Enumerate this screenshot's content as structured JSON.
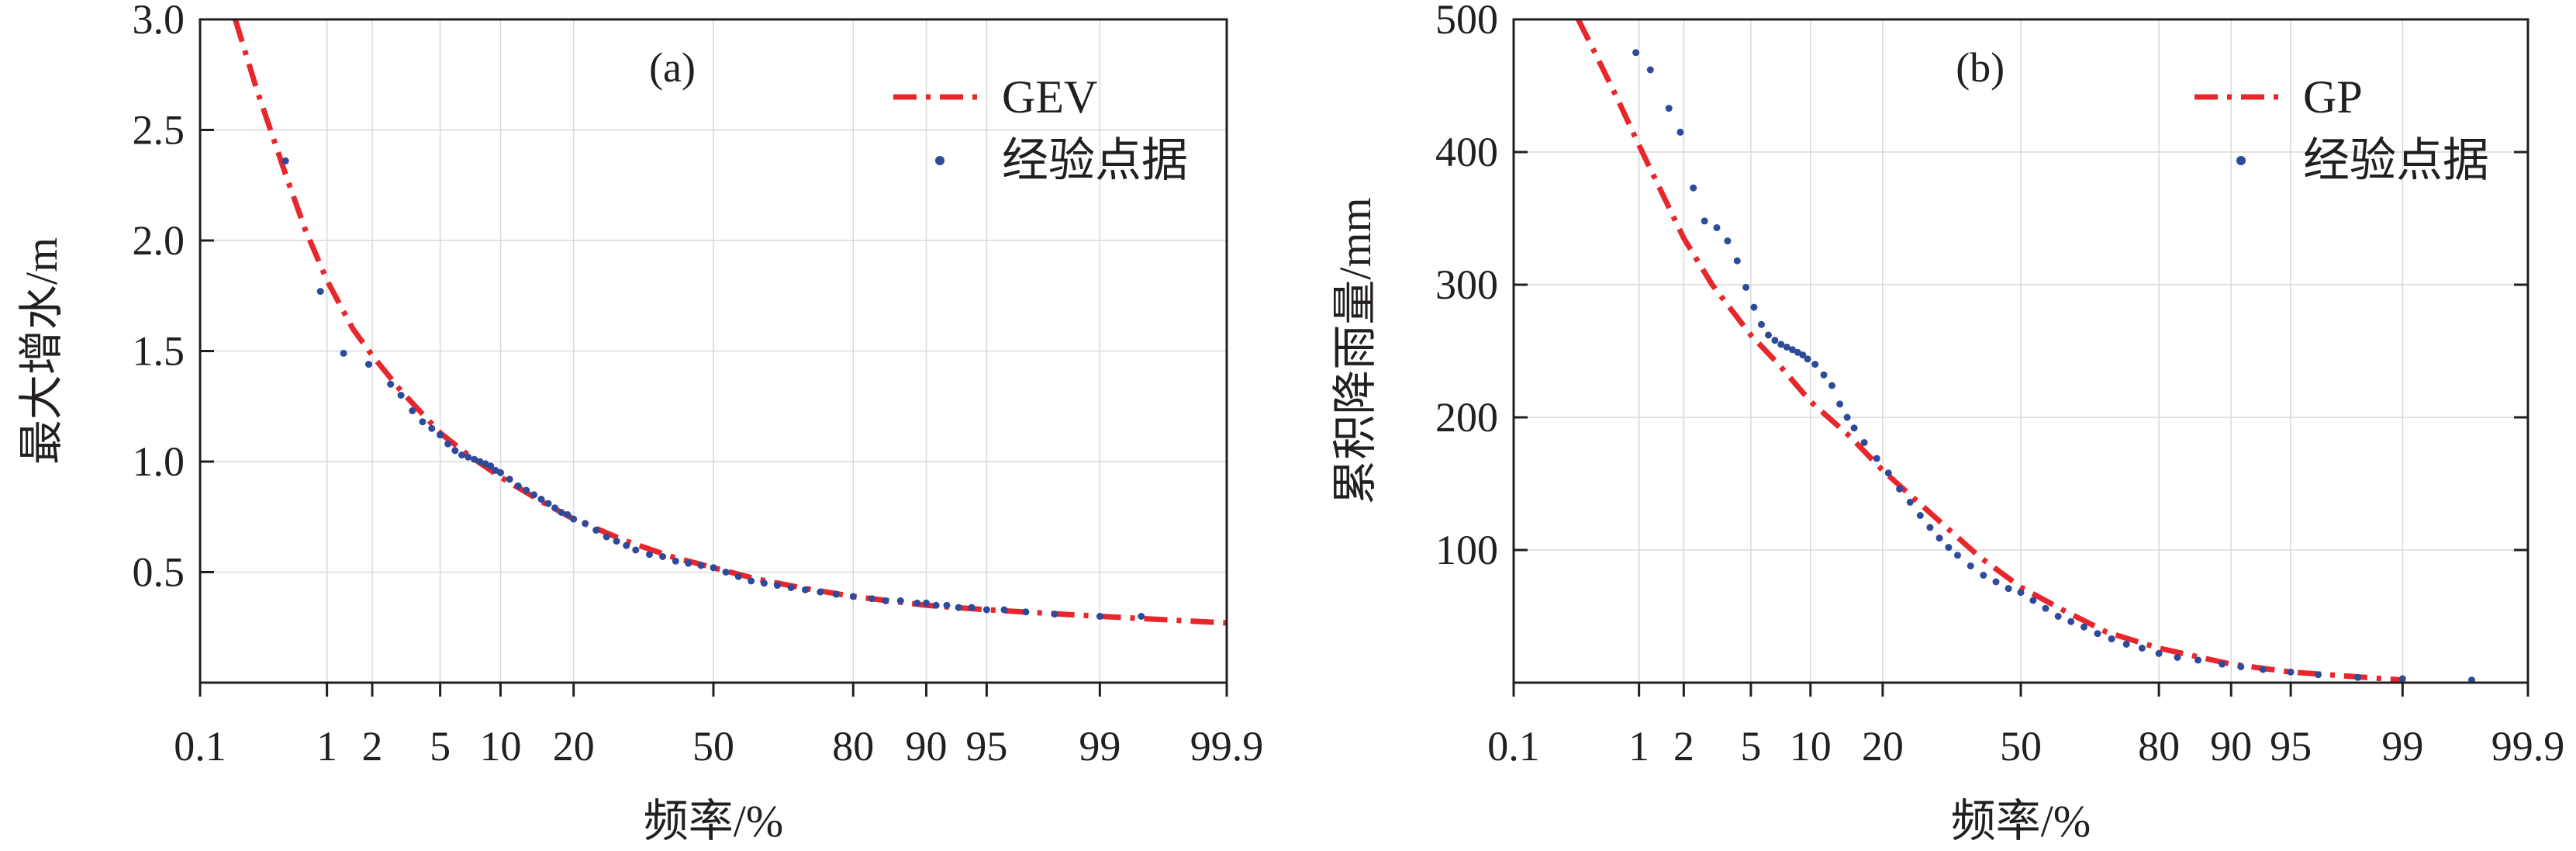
{
  "chart_data": [
    {
      "type": "scatter",
      "panel_label": "(a)",
      "xlabel": "频率/%",
      "ylabel": "最大增水/m",
      "x_scale": "normal-probability",
      "x_ticks": [
        0.1,
        1,
        2,
        5,
        10,
        20,
        50,
        80,
        90,
        95,
        99,
        99.9
      ],
      "x_tick_labels": [
        "0.1",
        "1",
        "2",
        "5",
        "10",
        "20",
        "50",
        "80",
        "90",
        "95",
        "99",
        "99.9"
      ],
      "y_ticks": [
        0.5,
        1.0,
        1.5,
        2.0,
        2.5,
        3.0
      ],
      "y_tick_labels": [
        "0.5",
        "1.0",
        "1.5",
        "2.0",
        "2.5",
        "3.0"
      ],
      "ylim": [
        0.0,
        3.0
      ],
      "grid": true,
      "legend_position": "top-right",
      "series": [
        {
          "name": "GEV",
          "kind": "fit-line",
          "color": "#e8262b",
          "x": [
            0.2,
            0.3,
            0.5,
            0.7,
            1,
            1.5,
            2,
            3,
            5,
            7,
            10,
            15,
            20,
            30,
            40,
            50,
            60,
            70,
            80,
            90,
            95,
            99,
            99.9
          ],
          "y": [
            3.0,
            2.68,
            2.3,
            2.05,
            1.82,
            1.6,
            1.48,
            1.32,
            1.13,
            1.03,
            0.93,
            0.82,
            0.74,
            0.64,
            0.57,
            0.52,
            0.47,
            0.43,
            0.39,
            0.35,
            0.33,
            0.3,
            0.27
          ]
        },
        {
          "name": "经验点据",
          "kind": "empirical",
          "color": "#2e4a9a",
          "x": [
            0.5,
            0.9,
            1.3,
            1.9,
            2.6,
            3,
            3.5,
            4,
            4.5,
            5,
            5.5,
            6,
            6.5,
            7,
            7.5,
            8,
            8.5,
            9,
            9.5,
            10,
            11,
            12,
            13,
            14,
            15,
            16,
            17,
            18,
            19,
            20,
            22,
            24,
            26,
            28,
            30,
            32,
            35,
            38,
            41,
            44,
            47,
            50,
            53,
            56,
            59,
            62,
            65,
            68,
            71,
            74,
            77,
            80,
            83,
            85,
            87,
            89,
            90,
            91,
            92,
            93,
            94,
            95,
            96,
            97,
            98,
            99,
            99.5
          ],
          "y": [
            2.36,
            1.77,
            1.49,
            1.44,
            1.35,
            1.3,
            1.23,
            1.18,
            1.15,
            1.12,
            1.08,
            1.05,
            1.03,
            1.02,
            1.01,
            1.0,
            0.99,
            0.98,
            0.96,
            0.95,
            0.92,
            0.89,
            0.87,
            0.85,
            0.83,
            0.81,
            0.79,
            0.77,
            0.76,
            0.74,
            0.72,
            0.69,
            0.66,
            0.64,
            0.62,
            0.6,
            0.58,
            0.57,
            0.55,
            0.54,
            0.53,
            0.52,
            0.5,
            0.48,
            0.46,
            0.45,
            0.44,
            0.43,
            0.42,
            0.41,
            0.4,
            0.39,
            0.38,
            0.37,
            0.37,
            0.36,
            0.36,
            0.35,
            0.35,
            0.34,
            0.34,
            0.33,
            0.33,
            0.32,
            0.31,
            0.3,
            0.3
          ]
        }
      ]
    },
    {
      "type": "scatter",
      "panel_label": "(b)",
      "xlabel": "频率/%",
      "ylabel": "累积降雨量/mm",
      "x_scale": "normal-probability",
      "x_ticks": [
        0.1,
        1,
        2,
        5,
        10,
        20,
        50,
        80,
        90,
        95,
        99,
        99.9
      ],
      "x_tick_labels": [
        "0.1",
        "1",
        "2",
        "5",
        "10",
        "20",
        "50",
        "80",
        "90",
        "95",
        "99",
        "99.9"
      ],
      "y_ticks": [
        100,
        200,
        300,
        400,
        500
      ],
      "y_tick_labels": [
        "100",
        "200",
        "300",
        "400",
        "500"
      ],
      "ylim": [
        0,
        500
      ],
      "grid": true,
      "legend_position": "top-right",
      "series": [
        {
          "name": "GP",
          "kind": "fit-line",
          "color": "#e8262b",
          "x": [
            0.35,
            0.5,
            0.7,
            1,
            1.5,
            2,
            3,
            5,
            7,
            10,
            15,
            20,
            30,
            40,
            50,
            60,
            70,
            80,
            90,
            95,
            99
          ],
          "y": [
            500,
            470,
            440,
            405,
            365,
            335,
            300,
            262,
            240,
            212,
            185,
            160,
            125,
            95,
            72,
            55,
            38,
            26,
            14,
            8,
            2
          ]
        },
        {
          "name": "经验点据",
          "kind": "empirical",
          "color": "#2e4a9a",
          "x": [
            0.95,
            1.2,
            1.6,
            1.9,
            2.3,
            2.7,
            3.2,
            3.7,
            4.2,
            4.7,
            5.2,
            5.7,
            6.2,
            6.7,
            7.2,
            7.7,
            8.2,
            8.7,
            9.2,
            9.7,
            10.5,
            11.5,
            12.5,
            13.5,
            14.5,
            15.5,
            17,
            19,
            21,
            23,
            25,
            27,
            29,
            31,
            33,
            35,
            38,
            41,
            44,
            47,
            50,
            53,
            56,
            59,
            62,
            65,
            68,
            71,
            74,
            77,
            80,
            83,
            86,
            89,
            91,
            93,
            95,
            96.5,
            98,
            99,
            99.7
          ],
          "y": [
            475,
            462,
            433,
            415,
            373,
            348,
            343,
            333,
            318,
            298,
            283,
            270,
            262,
            258,
            255,
            253,
            251,
            249,
            247,
            244,
            240,
            232,
            224,
            210,
            200,
            192,
            181,
            169,
            158,
            146,
            136,
            126,
            117,
            109,
            102,
            96,
            88,
            81,
            76,
            71,
            68,
            62,
            56,
            50,
            46,
            42,
            37,
            33,
            29,
            26,
            22,
            19,
            17,
            14,
            12,
            10,
            8,
            6,
            4,
            3,
            2
          ]
        }
      ]
    }
  ]
}
